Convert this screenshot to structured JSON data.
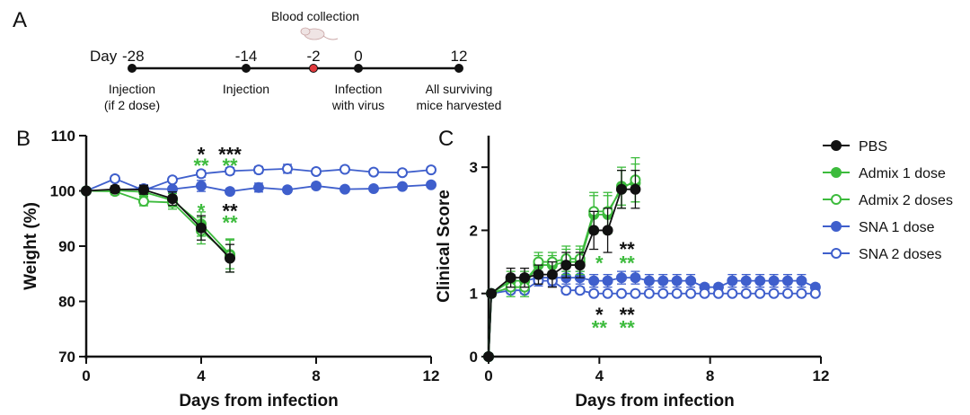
{
  "panels": {
    "a": "A",
    "b": "B",
    "c": "C"
  },
  "timeline": {
    "day_label": "Day",
    "points": [
      {
        "day": -28,
        "label": "-28",
        "caption": [
          "Injection",
          "(if 2 dose)"
        ],
        "highlight": false
      },
      {
        "day": -14,
        "label": "-14",
        "caption": [
          "Injection"
        ],
        "highlight": false
      },
      {
        "day": -2,
        "label": "-2",
        "caption": [],
        "highlight": true
      },
      {
        "day": 0,
        "label": "0",
        "caption": [
          "Infection",
          "with virus"
        ],
        "highlight": false
      },
      {
        "day": 12,
        "label": "12",
        "caption": [
          "All surviving",
          "mice harvested"
        ],
        "highlight": false
      }
    ],
    "blood_label": "Blood collection"
  },
  "legend": {
    "entries": [
      {
        "name": "PBS",
        "color": "#111111",
        "filled": true
      },
      {
        "name": "Admix 1 dose",
        "color": "#3dbb3d",
        "filled": true
      },
      {
        "name": "Admix 2 doses",
        "color": "#3dbb3d",
        "filled": false
      },
      {
        "name": "SNA 1 dose",
        "color": "#3f5fcc",
        "filled": true
      },
      {
        "name": "SNA 2 doses",
        "color": "#3f5fcc",
        "filled": false
      }
    ]
  },
  "chart_data": [
    {
      "type": "line",
      "panel": "B",
      "xlabel": "Days from infection",
      "ylabel": "Weight (%)",
      "xlim": [
        0,
        12
      ],
      "ylim": [
        70,
        110
      ],
      "xticks": [
        "0",
        "4",
        "8",
        "12"
      ],
      "yticks": [
        "70",
        "80",
        "90",
        "100",
        "110"
      ],
      "series": [
        {
          "name": "PBS",
          "color": "#111111",
          "filled": true,
          "x": [
            0,
            1,
            2,
            3,
            4,
            5
          ],
          "y": [
            100,
            100.3,
            100.2,
            98.6,
            93.3,
            87.8
          ],
          "err": [
            0.3,
            0.6,
            0.8,
            1.2,
            2.2,
            2.5
          ]
        },
        {
          "name": "Admix 1 dose",
          "color": "#3dbb3d",
          "filled": true,
          "x": [
            0,
            1,
            2,
            3,
            4,
            5
          ],
          "y": [
            100,
            100.1,
            99.8,
            98.3,
            94.0,
            88.5
          ],
          "err": [
            0.3,
            0.6,
            0.8,
            1.2,
            2.2,
            2.6
          ]
        },
        {
          "name": "Admix 2 doses",
          "color": "#3dbb3d",
          "filled": false,
          "x": [
            0,
            1,
            2,
            3,
            4,
            5
          ],
          "y": [
            100,
            99.9,
            98.1,
            97.9,
            92.8,
            88.3
          ],
          "err": [
            0.3,
            0.6,
            0.8,
            1.2,
            2.4,
            3.0
          ]
        },
        {
          "name": "SNA 1 dose",
          "color": "#3f5fcc",
          "filled": true,
          "x": [
            0,
            1,
            2,
            3,
            4,
            5,
            6,
            7,
            8,
            9,
            10,
            11,
            12
          ],
          "y": [
            100,
            100.2,
            100.4,
            100.3,
            100.9,
            99.9,
            100.6,
            100.2,
            100.9,
            100.3,
            100.4,
            100.8,
            101.1
          ],
          "err": [
            0.3,
            0.4,
            0.7,
            0.5,
            1.0,
            0.5,
            0.8,
            0.5,
            0.5,
            0.4,
            0.4,
            0.4,
            0.4
          ]
        },
        {
          "name": "SNA 2 doses",
          "color": "#3f5fcc",
          "filled": false,
          "x": [
            0,
            1,
            2,
            3,
            4,
            5,
            6,
            7,
            8,
            9,
            10,
            11,
            12
          ],
          "y": [
            100,
            102.2,
            100.1,
            102.0,
            103.1,
            103.6,
            103.8,
            104.0,
            103.5,
            103.9,
            103.4,
            103.3,
            103.8
          ],
          "err": [
            0.3,
            0.5,
            0.5,
            0.5,
            0.6,
            0.6,
            0.6,
            0.8,
            0.5,
            0.5,
            0.5,
            0.5,
            0.5
          ]
        }
      ],
      "annotations": [
        {
          "text": "*",
          "color": "#111111",
          "x": 4.0,
          "y": 106.8
        },
        {
          "text": "***",
          "color": "#111111",
          "x": 5.0,
          "y": 106.8
        },
        {
          "text": "**",
          "color": "#3dbb3d",
          "x": 4.0,
          "y": 104.8
        },
        {
          "text": "**",
          "color": "#3dbb3d",
          "x": 5.0,
          "y": 104.8
        },
        {
          "text": "*",
          "color": "#3dbb3d",
          "x": 4.0,
          "y": 96.6
        },
        {
          "text": "**",
          "color": "#111111",
          "x": 5.0,
          "y": 96.6
        },
        {
          "text": "**",
          "color": "#3dbb3d",
          "x": 5.0,
          "y": 94.5
        }
      ]
    },
    {
      "type": "line",
      "panel": "C",
      "xlabel": "Days from infection",
      "ylabel": "Clinical Score",
      "xlim": [
        0,
        12
      ],
      "ylim": [
        0,
        3.5
      ],
      "xticks": [
        "0",
        "4",
        "8",
        "12"
      ],
      "yticks": [
        "0",
        "1",
        "2",
        "3"
      ],
      "series": [
        {
          "name": "PBS",
          "color": "#111111",
          "filled": true,
          "x": [
            0,
            0.1,
            0.8,
            1.3,
            1.8,
            2.3,
            2.8,
            3.3,
            3.8,
            4.3,
            4.8,
            5.3
          ],
          "y": [
            0,
            1.0,
            1.25,
            1.25,
            1.3,
            1.3,
            1.45,
            1.45,
            2.0,
            2.0,
            2.65,
            2.65
          ],
          "err": [
            0,
            0.05,
            0.15,
            0.15,
            0.15,
            0.2,
            0.2,
            0.2,
            0.3,
            0.35,
            0.3,
            0.3
          ]
        },
        {
          "name": "Admix 1 dose",
          "color": "#3dbb3d",
          "filled": true,
          "x": [
            0,
            0.1,
            0.8,
            1.3,
            1.8,
            2.3,
            2.8,
            3.3,
            3.8,
            4.3,
            4.8,
            5.3
          ],
          "y": [
            0,
            1.0,
            1.2,
            1.2,
            1.45,
            1.45,
            1.5,
            1.5,
            2.25,
            2.25,
            2.7,
            2.75
          ],
          "err": [
            0,
            0.05,
            0.15,
            0.15,
            0.15,
            0.15,
            0.2,
            0.2,
            0.3,
            0.3,
            0.3,
            0.3
          ]
        },
        {
          "name": "Admix 2 doses",
          "color": "#3dbb3d",
          "filled": false,
          "x": [
            0,
            0.1,
            0.8,
            1.3,
            1.8,
            2.3,
            2.8,
            3.3,
            3.8,
            4.3,
            4.8,
            5.3
          ],
          "y": [
            0,
            1.0,
            1.1,
            1.1,
            1.5,
            1.5,
            1.55,
            1.55,
            2.3,
            2.3,
            2.65,
            2.8
          ],
          "err": [
            0,
            0.05,
            0.15,
            0.15,
            0.15,
            0.15,
            0.2,
            0.2,
            0.3,
            0.3,
            0.3,
            0.35
          ]
        },
        {
          "name": "SNA 1 dose",
          "color": "#3f5fcc",
          "filled": true,
          "x": [
            0,
            0.1,
            0.8,
            1.3,
            1.8,
            2.3,
            2.8,
            3.3,
            3.8,
            4.3,
            4.8,
            5.3,
            5.8,
            6.3,
            6.8,
            7.3,
            7.8,
            8.3,
            8.8,
            9.3,
            9.8,
            10.3,
            10.8,
            11.3,
            11.8
          ],
          "y": [
            0,
            1.0,
            1.2,
            1.2,
            1.25,
            1.25,
            1.25,
            1.25,
            1.2,
            1.2,
            1.25,
            1.25,
            1.2,
            1.2,
            1.2,
            1.2,
            1.1,
            1.1,
            1.2,
            1.2,
            1.2,
            1.2,
            1.2,
            1.2,
            1.1
          ],
          "err": [
            0,
            0.05,
            0.1,
            0.1,
            0.1,
            0.1,
            0.1,
            0.1,
            0.1,
            0.1,
            0.1,
            0.1,
            0.1,
            0.1,
            0.1,
            0.1,
            0.05,
            0.05,
            0.1,
            0.1,
            0.1,
            0.1,
            0.1,
            0.1,
            0.05
          ]
        },
        {
          "name": "SNA 2 doses",
          "color": "#3f5fcc",
          "filled": false,
          "x": [
            0,
            0.1,
            0.8,
            1.3,
            1.8,
            2.3,
            2.8,
            3.3,
            3.8,
            4.3,
            4.8,
            5.3,
            5.8,
            6.3,
            6.8,
            7.3,
            7.8,
            8.3,
            8.8,
            9.3,
            9.8,
            10.3,
            10.8,
            11.3,
            11.8
          ],
          "y": [
            0,
            1.0,
            1.05,
            1.05,
            1.2,
            1.2,
            1.05,
            1.05,
            1.0,
            1.0,
            1.0,
            1.0,
            1.0,
            1.0,
            1.0,
            1.0,
            1.0,
            1.0,
            1.0,
            1.0,
            1.0,
            1.0,
            1.0,
            1.0,
            1.0
          ],
          "err": [
            0,
            0.03,
            0.05,
            0.05,
            0.08,
            0.08,
            0.05,
            0.05,
            0.03,
            0.03,
            0.03,
            0.03,
            0.03,
            0.03,
            0.03,
            0.03,
            0.03,
            0.03,
            0.03,
            0.03,
            0.03,
            0.03,
            0.03,
            0.03,
            0.03
          ]
        }
      ],
      "annotations": [
        {
          "text": "**",
          "color": "#111111",
          "x": 5.0,
          "y": 1.72
        },
        {
          "text": "**",
          "color": "#3dbb3d",
          "x": 5.0,
          "y": 1.5
        },
        {
          "text": "*",
          "color": "#3dbb3d",
          "x": 4.0,
          "y": 1.5
        },
        {
          "text": "*",
          "color": "#111111",
          "x": 4.0,
          "y": 0.68
        },
        {
          "text": "**",
          "color": "#111111",
          "x": 5.0,
          "y": 0.68
        },
        {
          "text": "**",
          "color": "#3dbb3d",
          "x": 4.0,
          "y": 0.48
        },
        {
          "text": "**",
          "color": "#3dbb3d",
          "x": 5.0,
          "y": 0.48
        }
      ]
    }
  ]
}
